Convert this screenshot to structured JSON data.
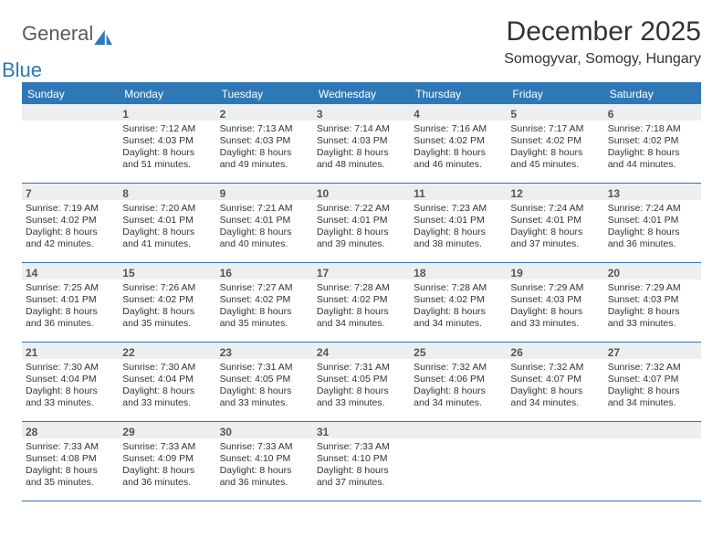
{
  "logo": {
    "word1": "General",
    "word2": "Blue"
  },
  "title": "December 2025",
  "location": "Somogyvar, Somogy, Hungary",
  "colors": {
    "accent": "#2f78b7",
    "headerText": "#ffffff",
    "daynumBg": "#eceeef",
    "text": "#333333",
    "logoGray": "#555a5e"
  },
  "dayHeaders": [
    "Sunday",
    "Monday",
    "Tuesday",
    "Wednesday",
    "Thursday",
    "Friday",
    "Saturday"
  ],
  "weeks": [
    [
      {
        "day": "",
        "sunrise": "",
        "sunset": "",
        "daylight": ""
      },
      {
        "day": "1",
        "sunrise": "Sunrise: 7:12 AM",
        "sunset": "Sunset: 4:03 PM",
        "daylight": "Daylight: 8 hours and 51 minutes."
      },
      {
        "day": "2",
        "sunrise": "Sunrise: 7:13 AM",
        "sunset": "Sunset: 4:03 PM",
        "daylight": "Daylight: 8 hours and 49 minutes."
      },
      {
        "day": "3",
        "sunrise": "Sunrise: 7:14 AM",
        "sunset": "Sunset: 4:03 PM",
        "daylight": "Daylight: 8 hours and 48 minutes."
      },
      {
        "day": "4",
        "sunrise": "Sunrise: 7:16 AM",
        "sunset": "Sunset: 4:02 PM",
        "daylight": "Daylight: 8 hours and 46 minutes."
      },
      {
        "day": "5",
        "sunrise": "Sunrise: 7:17 AM",
        "sunset": "Sunset: 4:02 PM",
        "daylight": "Daylight: 8 hours and 45 minutes."
      },
      {
        "day": "6",
        "sunrise": "Sunrise: 7:18 AM",
        "sunset": "Sunset: 4:02 PM",
        "daylight": "Daylight: 8 hours and 44 minutes."
      }
    ],
    [
      {
        "day": "7",
        "sunrise": "Sunrise: 7:19 AM",
        "sunset": "Sunset: 4:02 PM",
        "daylight": "Daylight: 8 hours and 42 minutes."
      },
      {
        "day": "8",
        "sunrise": "Sunrise: 7:20 AM",
        "sunset": "Sunset: 4:01 PM",
        "daylight": "Daylight: 8 hours and 41 minutes."
      },
      {
        "day": "9",
        "sunrise": "Sunrise: 7:21 AM",
        "sunset": "Sunset: 4:01 PM",
        "daylight": "Daylight: 8 hours and 40 minutes."
      },
      {
        "day": "10",
        "sunrise": "Sunrise: 7:22 AM",
        "sunset": "Sunset: 4:01 PM",
        "daylight": "Daylight: 8 hours and 39 minutes."
      },
      {
        "day": "11",
        "sunrise": "Sunrise: 7:23 AM",
        "sunset": "Sunset: 4:01 PM",
        "daylight": "Daylight: 8 hours and 38 minutes."
      },
      {
        "day": "12",
        "sunrise": "Sunrise: 7:24 AM",
        "sunset": "Sunset: 4:01 PM",
        "daylight": "Daylight: 8 hours and 37 minutes."
      },
      {
        "day": "13",
        "sunrise": "Sunrise: 7:24 AM",
        "sunset": "Sunset: 4:01 PM",
        "daylight": "Daylight: 8 hours and 36 minutes."
      }
    ],
    [
      {
        "day": "14",
        "sunrise": "Sunrise: 7:25 AM",
        "sunset": "Sunset: 4:01 PM",
        "daylight": "Daylight: 8 hours and 36 minutes."
      },
      {
        "day": "15",
        "sunrise": "Sunrise: 7:26 AM",
        "sunset": "Sunset: 4:02 PM",
        "daylight": "Daylight: 8 hours and 35 minutes."
      },
      {
        "day": "16",
        "sunrise": "Sunrise: 7:27 AM",
        "sunset": "Sunset: 4:02 PM",
        "daylight": "Daylight: 8 hours and 35 minutes."
      },
      {
        "day": "17",
        "sunrise": "Sunrise: 7:28 AM",
        "sunset": "Sunset: 4:02 PM",
        "daylight": "Daylight: 8 hours and 34 minutes."
      },
      {
        "day": "18",
        "sunrise": "Sunrise: 7:28 AM",
        "sunset": "Sunset: 4:02 PM",
        "daylight": "Daylight: 8 hours and 34 minutes."
      },
      {
        "day": "19",
        "sunrise": "Sunrise: 7:29 AM",
        "sunset": "Sunset: 4:03 PM",
        "daylight": "Daylight: 8 hours and 33 minutes."
      },
      {
        "day": "20",
        "sunrise": "Sunrise: 7:29 AM",
        "sunset": "Sunset: 4:03 PM",
        "daylight": "Daylight: 8 hours and 33 minutes."
      }
    ],
    [
      {
        "day": "21",
        "sunrise": "Sunrise: 7:30 AM",
        "sunset": "Sunset: 4:04 PM",
        "daylight": "Daylight: 8 hours and 33 minutes."
      },
      {
        "day": "22",
        "sunrise": "Sunrise: 7:30 AM",
        "sunset": "Sunset: 4:04 PM",
        "daylight": "Daylight: 8 hours and 33 minutes."
      },
      {
        "day": "23",
        "sunrise": "Sunrise: 7:31 AM",
        "sunset": "Sunset: 4:05 PM",
        "daylight": "Daylight: 8 hours and 33 minutes."
      },
      {
        "day": "24",
        "sunrise": "Sunrise: 7:31 AM",
        "sunset": "Sunset: 4:05 PM",
        "daylight": "Daylight: 8 hours and 33 minutes."
      },
      {
        "day": "25",
        "sunrise": "Sunrise: 7:32 AM",
        "sunset": "Sunset: 4:06 PM",
        "daylight": "Daylight: 8 hours and 34 minutes."
      },
      {
        "day": "26",
        "sunrise": "Sunrise: 7:32 AM",
        "sunset": "Sunset: 4:07 PM",
        "daylight": "Daylight: 8 hours and 34 minutes."
      },
      {
        "day": "27",
        "sunrise": "Sunrise: 7:32 AM",
        "sunset": "Sunset: 4:07 PM",
        "daylight": "Daylight: 8 hours and 34 minutes."
      }
    ],
    [
      {
        "day": "28",
        "sunrise": "Sunrise: 7:33 AM",
        "sunset": "Sunset: 4:08 PM",
        "daylight": "Daylight: 8 hours and 35 minutes."
      },
      {
        "day": "29",
        "sunrise": "Sunrise: 7:33 AM",
        "sunset": "Sunset: 4:09 PM",
        "daylight": "Daylight: 8 hours and 36 minutes."
      },
      {
        "day": "30",
        "sunrise": "Sunrise: 7:33 AM",
        "sunset": "Sunset: 4:10 PM",
        "daylight": "Daylight: 8 hours and 36 minutes."
      },
      {
        "day": "31",
        "sunrise": "Sunrise: 7:33 AM",
        "sunset": "Sunset: 4:10 PM",
        "daylight": "Daylight: 8 hours and 37 minutes."
      },
      {
        "day": "",
        "sunrise": "",
        "sunset": "",
        "daylight": ""
      },
      {
        "day": "",
        "sunrise": "",
        "sunset": "",
        "daylight": ""
      },
      {
        "day": "",
        "sunrise": "",
        "sunset": "",
        "daylight": ""
      }
    ]
  ]
}
